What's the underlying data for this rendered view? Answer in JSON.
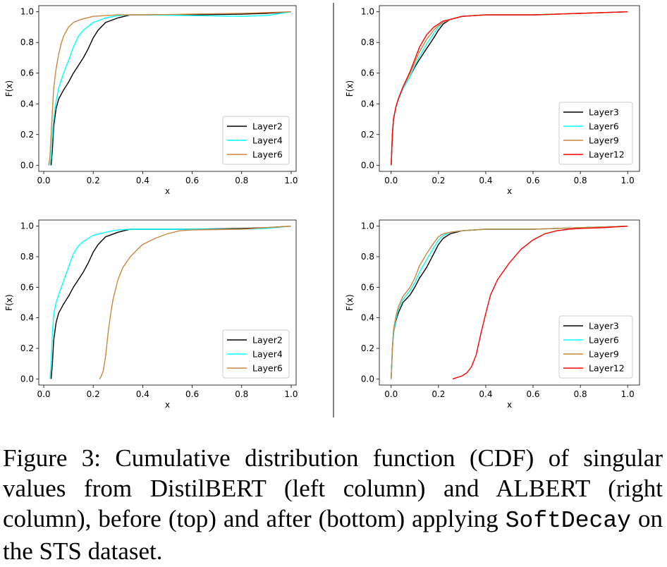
{
  "chart_data": [
    {
      "type": "line",
      "panel": "top-left",
      "xlabel": "x",
      "ylabel": "F(x)",
      "xlim": [
        -0.02,
        1.02
      ],
      "ylim": [
        -0.04,
        1.04
      ],
      "xticks": [
        0.0,
        0.2,
        0.4,
        0.6,
        0.8,
        1.0
      ],
      "yticks": [
        0.0,
        0.2,
        0.4,
        0.6,
        0.8,
        1.0
      ],
      "legend_position": "lower-right",
      "series": [
        {
          "name": "Layer2",
          "color": "#000000",
          "x": [
            0.03,
            0.035,
            0.04,
            0.05,
            0.06,
            0.08,
            0.1,
            0.12,
            0.14,
            0.16,
            0.18,
            0.2,
            0.22,
            0.25,
            0.3,
            0.35,
            0.4,
            0.6,
            0.8,
            0.9,
            1.0
          ],
          "y": [
            0.0,
            0.1,
            0.25,
            0.37,
            0.43,
            0.49,
            0.54,
            0.6,
            0.65,
            0.7,
            0.76,
            0.83,
            0.88,
            0.93,
            0.96,
            0.98,
            0.98,
            0.98,
            0.985,
            0.99,
            1.0
          ]
        },
        {
          "name": "Layer4",
          "color": "#00ffff",
          "x": [
            0.025,
            0.03,
            0.035,
            0.04,
            0.05,
            0.06,
            0.07,
            0.08,
            0.1,
            0.12,
            0.14,
            0.16,
            0.2,
            0.25,
            0.3,
            0.35,
            0.4,
            0.6,
            0.8,
            0.9,
            1.0
          ],
          "y": [
            0.0,
            0.05,
            0.2,
            0.3,
            0.42,
            0.5,
            0.55,
            0.6,
            0.68,
            0.77,
            0.84,
            0.88,
            0.93,
            0.96,
            0.975,
            0.98,
            0.98,
            0.975,
            0.97,
            0.975,
            1.0
          ]
        },
        {
          "name": "Layer6",
          "color": "#cd853f",
          "x": [
            0.02,
            0.025,
            0.03,
            0.035,
            0.04,
            0.05,
            0.06,
            0.07,
            0.08,
            0.1,
            0.12,
            0.15,
            0.2,
            0.25,
            0.3,
            0.4,
            0.6,
            0.8,
            0.9,
            1.0
          ],
          "y": [
            0.0,
            0.05,
            0.2,
            0.35,
            0.5,
            0.63,
            0.72,
            0.79,
            0.84,
            0.9,
            0.93,
            0.95,
            0.97,
            0.975,
            0.98,
            0.98,
            0.985,
            0.99,
            0.995,
            1.0
          ]
        }
      ]
    },
    {
      "type": "line",
      "panel": "top-right",
      "xlabel": "x",
      "ylabel": "F(x)",
      "xlim": [
        -0.05,
        1.05
      ],
      "ylim": [
        -0.04,
        1.04
      ],
      "xticks": [
        0.0,
        0.2,
        0.4,
        0.6,
        0.8,
        1.0
      ],
      "yticks": [
        0.0,
        0.2,
        0.4,
        0.6,
        0.8,
        1.0
      ],
      "legend_position": "lower-right",
      "series": [
        {
          "name": "Layer3",
          "color": "#000000",
          "x": [
            0.0,
            0.005,
            0.01,
            0.02,
            0.03,
            0.05,
            0.08,
            0.1,
            0.12,
            0.15,
            0.18,
            0.2,
            0.22,
            0.25,
            0.3,
            0.4,
            0.6,
            0.8,
            1.0
          ],
          "y": [
            0.0,
            0.2,
            0.3,
            0.38,
            0.43,
            0.5,
            0.58,
            0.64,
            0.69,
            0.76,
            0.83,
            0.88,
            0.92,
            0.95,
            0.97,
            0.98,
            0.98,
            0.99,
            1.0
          ]
        },
        {
          "name": "Layer6",
          "color": "#00ffff",
          "x": [
            0.0,
            0.005,
            0.01,
            0.02,
            0.03,
            0.05,
            0.08,
            0.1,
            0.12,
            0.15,
            0.18,
            0.2,
            0.22,
            0.25,
            0.3,
            0.4,
            0.6,
            0.8,
            1.0
          ],
          "y": [
            0.0,
            0.2,
            0.3,
            0.38,
            0.43,
            0.5,
            0.58,
            0.65,
            0.71,
            0.79,
            0.86,
            0.9,
            0.93,
            0.95,
            0.97,
            0.98,
            0.98,
            0.99,
            1.0
          ]
        },
        {
          "name": "Layer9",
          "color": "#cd853f",
          "x": [
            0.0,
            0.005,
            0.01,
            0.02,
            0.03,
            0.05,
            0.08,
            0.1,
            0.12,
            0.15,
            0.18,
            0.2,
            0.22,
            0.25,
            0.3,
            0.4,
            0.6,
            0.8,
            1.0
          ],
          "y": [
            0.0,
            0.2,
            0.3,
            0.38,
            0.43,
            0.51,
            0.6,
            0.67,
            0.74,
            0.82,
            0.88,
            0.91,
            0.93,
            0.95,
            0.97,
            0.98,
            0.98,
            0.99,
            1.0
          ]
        },
        {
          "name": "Layer12",
          "color": "#ff0000",
          "x": [
            0.0,
            0.005,
            0.01,
            0.02,
            0.03,
            0.05,
            0.08,
            0.1,
            0.12,
            0.15,
            0.18,
            0.2,
            0.22,
            0.25,
            0.3,
            0.4,
            0.6,
            0.8,
            1.0
          ],
          "y": [
            0.0,
            0.2,
            0.3,
            0.38,
            0.43,
            0.51,
            0.61,
            0.69,
            0.77,
            0.85,
            0.9,
            0.92,
            0.94,
            0.95,
            0.97,
            0.98,
            0.98,
            0.99,
            1.0
          ]
        }
      ]
    },
    {
      "type": "line",
      "panel": "bottom-left",
      "xlabel": "x",
      "ylabel": "F(x)",
      "xlim": [
        -0.02,
        1.02
      ],
      "ylim": [
        -0.04,
        1.04
      ],
      "xticks": [
        0.0,
        0.2,
        0.4,
        0.6,
        0.8,
        1.0
      ],
      "yticks": [
        0.0,
        0.2,
        0.4,
        0.6,
        0.8,
        1.0
      ],
      "legend_position": "lower-right",
      "series": [
        {
          "name": "Layer2",
          "color": "#000000",
          "x": [
            0.03,
            0.035,
            0.04,
            0.05,
            0.06,
            0.08,
            0.1,
            0.12,
            0.14,
            0.16,
            0.18,
            0.2,
            0.22,
            0.25,
            0.3,
            0.35,
            0.4,
            0.6,
            0.8,
            0.9,
            1.0
          ],
          "y": [
            0.0,
            0.1,
            0.25,
            0.37,
            0.43,
            0.49,
            0.54,
            0.6,
            0.65,
            0.7,
            0.76,
            0.83,
            0.88,
            0.93,
            0.96,
            0.98,
            0.98,
            0.98,
            0.985,
            0.99,
            1.0
          ]
        },
        {
          "name": "Layer4",
          "color": "#00ffff",
          "x": [
            0.025,
            0.03,
            0.035,
            0.04,
            0.05,
            0.06,
            0.08,
            0.1,
            0.12,
            0.14,
            0.16,
            0.2,
            0.25,
            0.3,
            0.35,
            0.4,
            0.6,
            0.8,
            0.9,
            1.0
          ],
          "y": [
            0.0,
            0.1,
            0.3,
            0.42,
            0.5,
            0.55,
            0.64,
            0.73,
            0.82,
            0.87,
            0.9,
            0.94,
            0.96,
            0.975,
            0.98,
            0.98,
            0.98,
            0.98,
            0.985,
            1.0
          ]
        },
        {
          "name": "Layer6",
          "color": "#cd853f",
          "x": [
            0.225,
            0.23,
            0.24,
            0.25,
            0.26,
            0.27,
            0.28,
            0.3,
            0.32,
            0.35,
            0.38,
            0.4,
            0.45,
            0.5,
            0.55,
            0.6,
            0.8,
            0.9,
            1.0
          ],
          "y": [
            0.0,
            0.01,
            0.05,
            0.15,
            0.3,
            0.42,
            0.52,
            0.65,
            0.73,
            0.8,
            0.85,
            0.88,
            0.92,
            0.95,
            0.97,
            0.975,
            0.98,
            0.99,
            1.0
          ]
        }
      ]
    },
    {
      "type": "line",
      "panel": "bottom-right",
      "xlabel": "x",
      "ylabel": "F(x)",
      "xlim": [
        -0.05,
        1.05
      ],
      "ylim": [
        -0.04,
        1.04
      ],
      "xticks": [
        0.0,
        0.2,
        0.4,
        0.6,
        0.8,
        1.0
      ],
      "yticks": [
        0.0,
        0.2,
        0.4,
        0.6,
        0.8,
        1.0
      ],
      "legend_position": "lower-right",
      "series": [
        {
          "name": "Layer3",
          "color": "#000000",
          "x": [
            0.0,
            0.005,
            0.01,
            0.02,
            0.03,
            0.05,
            0.08,
            0.1,
            0.12,
            0.15,
            0.18,
            0.2,
            0.22,
            0.25,
            0.3,
            0.4,
            0.6,
            0.8,
            1.0
          ],
          "y": [
            0.0,
            0.2,
            0.3,
            0.38,
            0.43,
            0.5,
            0.55,
            0.6,
            0.66,
            0.73,
            0.82,
            0.88,
            0.92,
            0.95,
            0.97,
            0.98,
            0.98,
            0.99,
            1.0
          ]
        },
        {
          "name": "Layer6",
          "color": "#00ffff",
          "x": [
            0.0,
            0.005,
            0.01,
            0.02,
            0.03,
            0.05,
            0.08,
            0.1,
            0.12,
            0.15,
            0.18,
            0.2,
            0.22,
            0.25,
            0.3,
            0.4,
            0.6,
            0.8,
            1.0
          ],
          "y": [
            0.0,
            0.2,
            0.3,
            0.39,
            0.45,
            0.52,
            0.58,
            0.63,
            0.7,
            0.78,
            0.86,
            0.91,
            0.94,
            0.96,
            0.97,
            0.98,
            0.98,
            0.99,
            1.0
          ]
        },
        {
          "name": "Layer9",
          "color": "#cd853f",
          "x": [
            0.0,
            0.005,
            0.01,
            0.02,
            0.03,
            0.05,
            0.08,
            0.1,
            0.12,
            0.15,
            0.18,
            0.2,
            0.22,
            0.25,
            0.3,
            0.4,
            0.6,
            0.8,
            1.0
          ],
          "y": [
            0.0,
            0.2,
            0.32,
            0.41,
            0.47,
            0.54,
            0.6,
            0.66,
            0.74,
            0.82,
            0.89,
            0.93,
            0.95,
            0.96,
            0.97,
            0.98,
            0.98,
            0.99,
            1.0
          ]
        },
        {
          "name": "Layer12",
          "color": "#ff0000",
          "x": [
            0.26,
            0.28,
            0.3,
            0.32,
            0.34,
            0.36,
            0.38,
            0.4,
            0.42,
            0.45,
            0.5,
            0.55,
            0.6,
            0.65,
            0.7,
            0.75,
            0.8,
            0.9,
            1.0
          ],
          "y": [
            0.0,
            0.01,
            0.02,
            0.04,
            0.08,
            0.16,
            0.3,
            0.43,
            0.55,
            0.65,
            0.76,
            0.85,
            0.91,
            0.95,
            0.97,
            0.98,
            0.985,
            0.99,
            1.0
          ]
        }
      ]
    }
  ],
  "caption": {
    "prefix": "Figure 3: Cumulative distribution function (CDF) of singular values from DistilBERT (left column) and ALBERT (right column), before (top) and after (bottom) applying ",
    "method": "SoftDecay",
    "suffix": " on the STS dataset."
  }
}
